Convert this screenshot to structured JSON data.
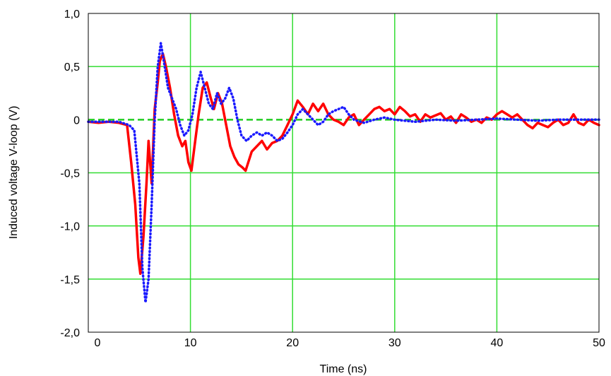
{
  "chart_data": {
    "type": "line",
    "title": "",
    "xlabel": "Time   (ns)",
    "ylabel": "Induced voltage V-loop   (V)",
    "xlim": [
      0,
      50
    ],
    "ylim": [
      -2.0,
      1.0
    ],
    "x_ticks": [
      "0",
      "10",
      "20",
      "30",
      "40",
      "50"
    ],
    "y_ticks": [
      "1,0",
      "0,5",
      "0",
      "-0,5",
      "-1,0",
      "-1,5",
      "-2,0"
    ],
    "grid": true,
    "legend": "none",
    "colors": {
      "grid": "#33dd33",
      "zero_line": "#22cc22",
      "series_1": "#ff0000",
      "series_2": "#1a1aff"
    },
    "series": [
      {
        "style": "solid",
        "color": "#ff0000",
        "x": [
          0,
          1,
          2,
          3,
          3.8,
          4.2,
          4.6,
          4.9,
          5.1,
          5.4,
          5.7,
          5.9,
          6.2,
          6.5,
          6.8,
          7.0,
          7.3,
          7.6,
          8.0,
          8.4,
          8.8,
          9.2,
          9.5,
          9.8,
          10.1,
          10.4,
          10.8,
          11.2,
          11.6,
          12.0,
          12.3,
          12.7,
          13.1,
          13.5,
          13.9,
          14.3,
          14.7,
          15.1,
          15.4,
          16.0,
          16.5,
          17.0,
          17.5,
          18.0,
          18.5,
          19.0,
          19.5,
          20.0,
          20.5,
          21.0,
          21.5,
          22.0,
          22.5,
          23.0,
          23.5,
          24.0,
          24.5,
          25.0,
          25.5,
          26.0,
          26.5,
          27.0,
          27.5,
          28.0,
          28.5,
          29.0,
          29.5,
          30.0,
          30.5,
          31.0,
          31.5,
          32.0,
          32.5,
          33.0,
          33.5,
          34.0,
          34.5,
          35.0,
          35.5,
          36.0,
          36.5,
          37.0,
          37.5,
          38.0,
          38.5,
          39.0,
          39.5,
          40.0,
          40.5,
          41.0,
          41.5,
          42.0,
          42.5,
          43.0,
          43.5,
          44.0,
          44.5,
          45.0,
          45.5,
          46.0,
          46.5,
          47.0,
          47.5,
          48.0,
          48.5,
          49.0,
          49.5,
          50.0
        ],
        "y": [
          -0.02,
          -0.03,
          -0.02,
          -0.03,
          -0.05,
          -0.4,
          -0.8,
          -1.3,
          -1.45,
          -1.1,
          -0.6,
          -0.2,
          -0.6,
          0.1,
          0.35,
          0.55,
          0.62,
          0.5,
          0.3,
          0.05,
          -0.15,
          -0.25,
          -0.2,
          -0.4,
          -0.48,
          -0.25,
          0.05,
          0.3,
          0.35,
          0.2,
          0.1,
          0.25,
          0.15,
          -0.05,
          -0.25,
          -0.35,
          -0.42,
          -0.45,
          -0.48,
          -0.3,
          -0.25,
          -0.2,
          -0.28,
          -0.22,
          -0.2,
          -0.15,
          -0.05,
          0.05,
          0.18,
          0.12,
          0.05,
          0.15,
          0.08,
          0.15,
          0.05,
          0.0,
          -0.02,
          -0.05,
          0.02,
          0.05,
          -0.05,
          0.0,
          0.05,
          0.1,
          0.12,
          0.08,
          0.1,
          0.05,
          0.12,
          0.08,
          0.03,
          0.05,
          -0.02,
          0.05,
          0.02,
          0.04,
          0.06,
          0.0,
          0.03,
          -0.03,
          0.05,
          0.02,
          -0.02,
          0.0,
          -0.03,
          0.02,
          0.0,
          0.05,
          0.08,
          0.05,
          0.02,
          0.05,
          0.0,
          -0.05,
          -0.08,
          -0.03,
          -0.05,
          -0.07,
          -0.03,
          0.0,
          -0.05,
          -0.03,
          0.05,
          -0.03,
          -0.05,
          0.0,
          -0.03,
          -0.05
        ]
      },
      {
        "style": "dotted",
        "color": "#1a1aff",
        "x": [
          0,
          1,
          2,
          3,
          4,
          4.5,
          5.0,
          5.3,
          5.6,
          5.9,
          6.2,
          6.5,
          6.8,
          7.1,
          7.4,
          7.8,
          8.2,
          8.6,
          9.0,
          9.4,
          9.8,
          10.2,
          10.6,
          11.0,
          11.4,
          11.8,
          12.2,
          12.6,
          13.0,
          13.4,
          13.8,
          14.2,
          14.6,
          15.0,
          15.5,
          16.0,
          16.5,
          17.0,
          17.5,
          18.0,
          18.5,
          19.0,
          19.5,
          20.0,
          20.5,
          21.0,
          21.5,
          22.0,
          22.5,
          23.0,
          23.5,
          24.0,
          24.5,
          25.0,
          25.5,
          26.0,
          27.0,
          28.0,
          29.0,
          30.0,
          32.0,
          34.0,
          36.0,
          38.0,
          40.0,
          42.0,
          44.0,
          46.0,
          48.0,
          50.0
        ],
        "y": [
          -0.02,
          -0.02,
          -0.02,
          -0.02,
          -0.05,
          -0.1,
          -0.6,
          -1.4,
          -1.72,
          -1.5,
          -0.8,
          0.0,
          0.5,
          0.72,
          0.55,
          0.3,
          0.2,
          0.1,
          -0.05,
          -0.15,
          -0.1,
          0.05,
          0.3,
          0.45,
          0.3,
          0.15,
          0.1,
          0.25,
          0.15,
          0.2,
          0.3,
          0.2,
          0.0,
          -0.15,
          -0.2,
          -0.15,
          -0.12,
          -0.15,
          -0.12,
          -0.15,
          -0.2,
          -0.18,
          -0.12,
          -0.05,
          0.05,
          0.1,
          0.05,
          0.0,
          -0.05,
          -0.02,
          0.05,
          0.08,
          0.1,
          0.12,
          0.05,
          0.0,
          -0.03,
          0.0,
          0.02,
          0.0,
          -0.02,
          0.0,
          -0.01,
          0.0,
          0.01,
          0.0,
          -0.01,
          0.0,
          0.0,
          0.0
        ]
      }
    ]
  }
}
